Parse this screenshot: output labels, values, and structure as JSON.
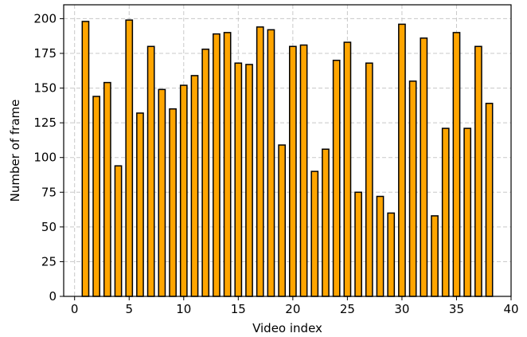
{
  "chart_data": {
    "type": "bar",
    "title": "",
    "xlabel": "Video index",
    "ylabel": "Number of frame",
    "x": [
      1,
      2,
      3,
      4,
      5,
      6,
      7,
      8,
      9,
      10,
      11,
      12,
      13,
      14,
      15,
      16,
      17,
      18,
      19,
      20,
      21,
      22,
      23,
      24,
      25,
      26,
      27,
      28,
      29,
      30,
      31,
      32,
      33,
      34,
      35,
      36,
      37,
      38
    ],
    "values": [
      198,
      144,
      154,
      94,
      199,
      132,
      180,
      149,
      135,
      152,
      159,
      178,
      189,
      190,
      168,
      167,
      194,
      192,
      109,
      180,
      181,
      90,
      106,
      170,
      183,
      75,
      168,
      72,
      60,
      196,
      155,
      186,
      58,
      121,
      190,
      121,
      180,
      139
    ],
    "xlim": [
      -1,
      40
    ],
    "ylim": [
      0,
      210
    ],
    "xticks": [
      0,
      5,
      10,
      15,
      20,
      25,
      30,
      35,
      40
    ],
    "yticks": [
      0,
      25,
      50,
      75,
      100,
      125,
      150,
      175,
      200
    ],
    "grid": true,
    "legend": "none",
    "bar_color": "#ffa500",
    "edge_color": "#000000",
    "grid_color": "#c8c8c8"
  }
}
